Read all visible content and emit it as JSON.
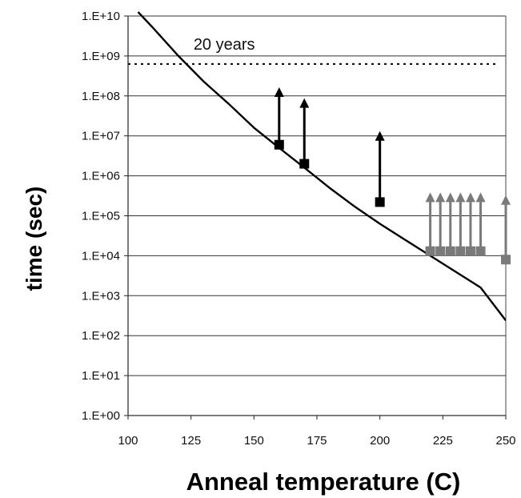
{
  "chart_data": {
    "type": "scatter",
    "title": "",
    "xlabel": "Anneal temperature (C)",
    "ylabel": "time (sec)",
    "xlim": [
      100,
      250
    ],
    "ylim": [
      1,
      10000000000
    ],
    "y_scale": "log",
    "x_ticks": [
      "100",
      "125",
      "150",
      "175",
      "200",
      "225",
      "250"
    ],
    "y_ticks": [
      "1.E+00",
      "1.E+01",
      "1.E+02",
      "1.E+03",
      "1.E+04",
      "1.E+05",
      "1.E+06",
      "1.E+07",
      "1.E+08",
      "1.E+09",
      "1.E+10"
    ],
    "grid": "horizontal",
    "reference_line": {
      "label": "20 years",
      "y": 630000000,
      "style": "dotted"
    },
    "curve": {
      "x": [
        104,
        110,
        120,
        130,
        140,
        150,
        160,
        170,
        180,
        190,
        200,
        210,
        220,
        230,
        240,
        250
      ],
      "y": [
        12600000000,
        5000000000,
        1000000000,
        230000000,
        63000000,
        16000000,
        5000000,
        1600000,
        500000,
        170000,
        63000,
        25000,
        10000,
        4000,
        1600,
        240
      ]
    },
    "series": [
      {
        "color": "#000000",
        "points": [
          {
            "x": 160,
            "y": 6000000,
            "y_arrow": 150000000
          },
          {
            "x": 170,
            "y": 2000000,
            "y_arrow": 80000000
          },
          {
            "x": 200,
            "y": 220000,
            "y_arrow": 12000000
          }
        ]
      },
      {
        "color": "#7a7a7a",
        "points": [
          {
            "x": 220,
            "y": 13000,
            "y_arrow": 350000
          },
          {
            "x": 224,
            "y": 13000,
            "y_arrow": 350000
          },
          {
            "x": 228,
            "y": 13000,
            "y_arrow": 350000
          },
          {
            "x": 232,
            "y": 13000,
            "y_arrow": 350000
          },
          {
            "x": 236,
            "y": 13000,
            "y_arrow": 350000
          },
          {
            "x": 240,
            "y": 13000,
            "y_arrow": 350000
          },
          {
            "x": 250,
            "y": 8000,
            "y_arrow": 300000
          }
        ]
      }
    ]
  }
}
